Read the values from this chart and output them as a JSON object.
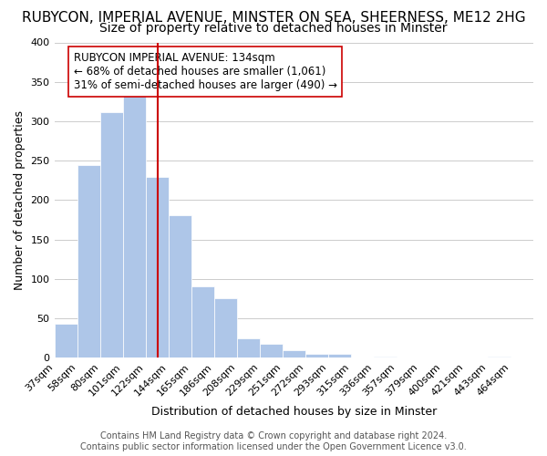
{
  "title": "RUBYCON, IMPERIAL AVENUE, MINSTER ON SEA, SHEERNESS, ME12 2HG",
  "subtitle": "Size of property relative to detached houses in Minster",
  "xlabel": "Distribution of detached houses by size in Minster",
  "ylabel": "Number of detached properties",
  "bin_labels": [
    "37sqm",
    "58sqm",
    "80sqm",
    "101sqm",
    "122sqm",
    "144sqm",
    "165sqm",
    "186sqm",
    "208sqm",
    "229sqm",
    "251sqm",
    "272sqm",
    "293sqm",
    "315sqm",
    "336sqm",
    "357sqm",
    "379sqm",
    "400sqm",
    "421sqm",
    "443sqm",
    "464sqm"
  ],
  "bar_heights": [
    43,
    245,
    312,
    335,
    229,
    181,
    91,
    76,
    25,
    18,
    10,
    5,
    5,
    0,
    1,
    0,
    0,
    0,
    0,
    2,
    0
  ],
  "bar_color": "#aec6e8",
  "bar_edge_color": "#ffffff",
  "vline_color": "#cc0000",
  "annotation_title": "RUBYCON IMPERIAL AVENUE: 134sqm",
  "annotation_line1": "← 68% of detached houses are smaller (1,061)",
  "annotation_line2": "31% of semi-detached houses are larger (490) →",
  "annotation_box_color": "#ffffff",
  "annotation_box_edge": "#cc0000",
  "ylim": [
    0,
    400
  ],
  "yticks": [
    0,
    50,
    100,
    150,
    200,
    250,
    300,
    350,
    400
  ],
  "footer_line1": "Contains HM Land Registry data © Crown copyright and database right 2024.",
  "footer_line2": "Contains public sector information licensed under the Open Government Licence v3.0.",
  "background_color": "#ffffff",
  "grid_color": "#cccccc",
  "title_fontsize": 11,
  "subtitle_fontsize": 10,
  "axis_label_fontsize": 9,
  "tick_fontsize": 8,
  "annotation_fontsize": 8.5,
  "footer_fontsize": 7
}
